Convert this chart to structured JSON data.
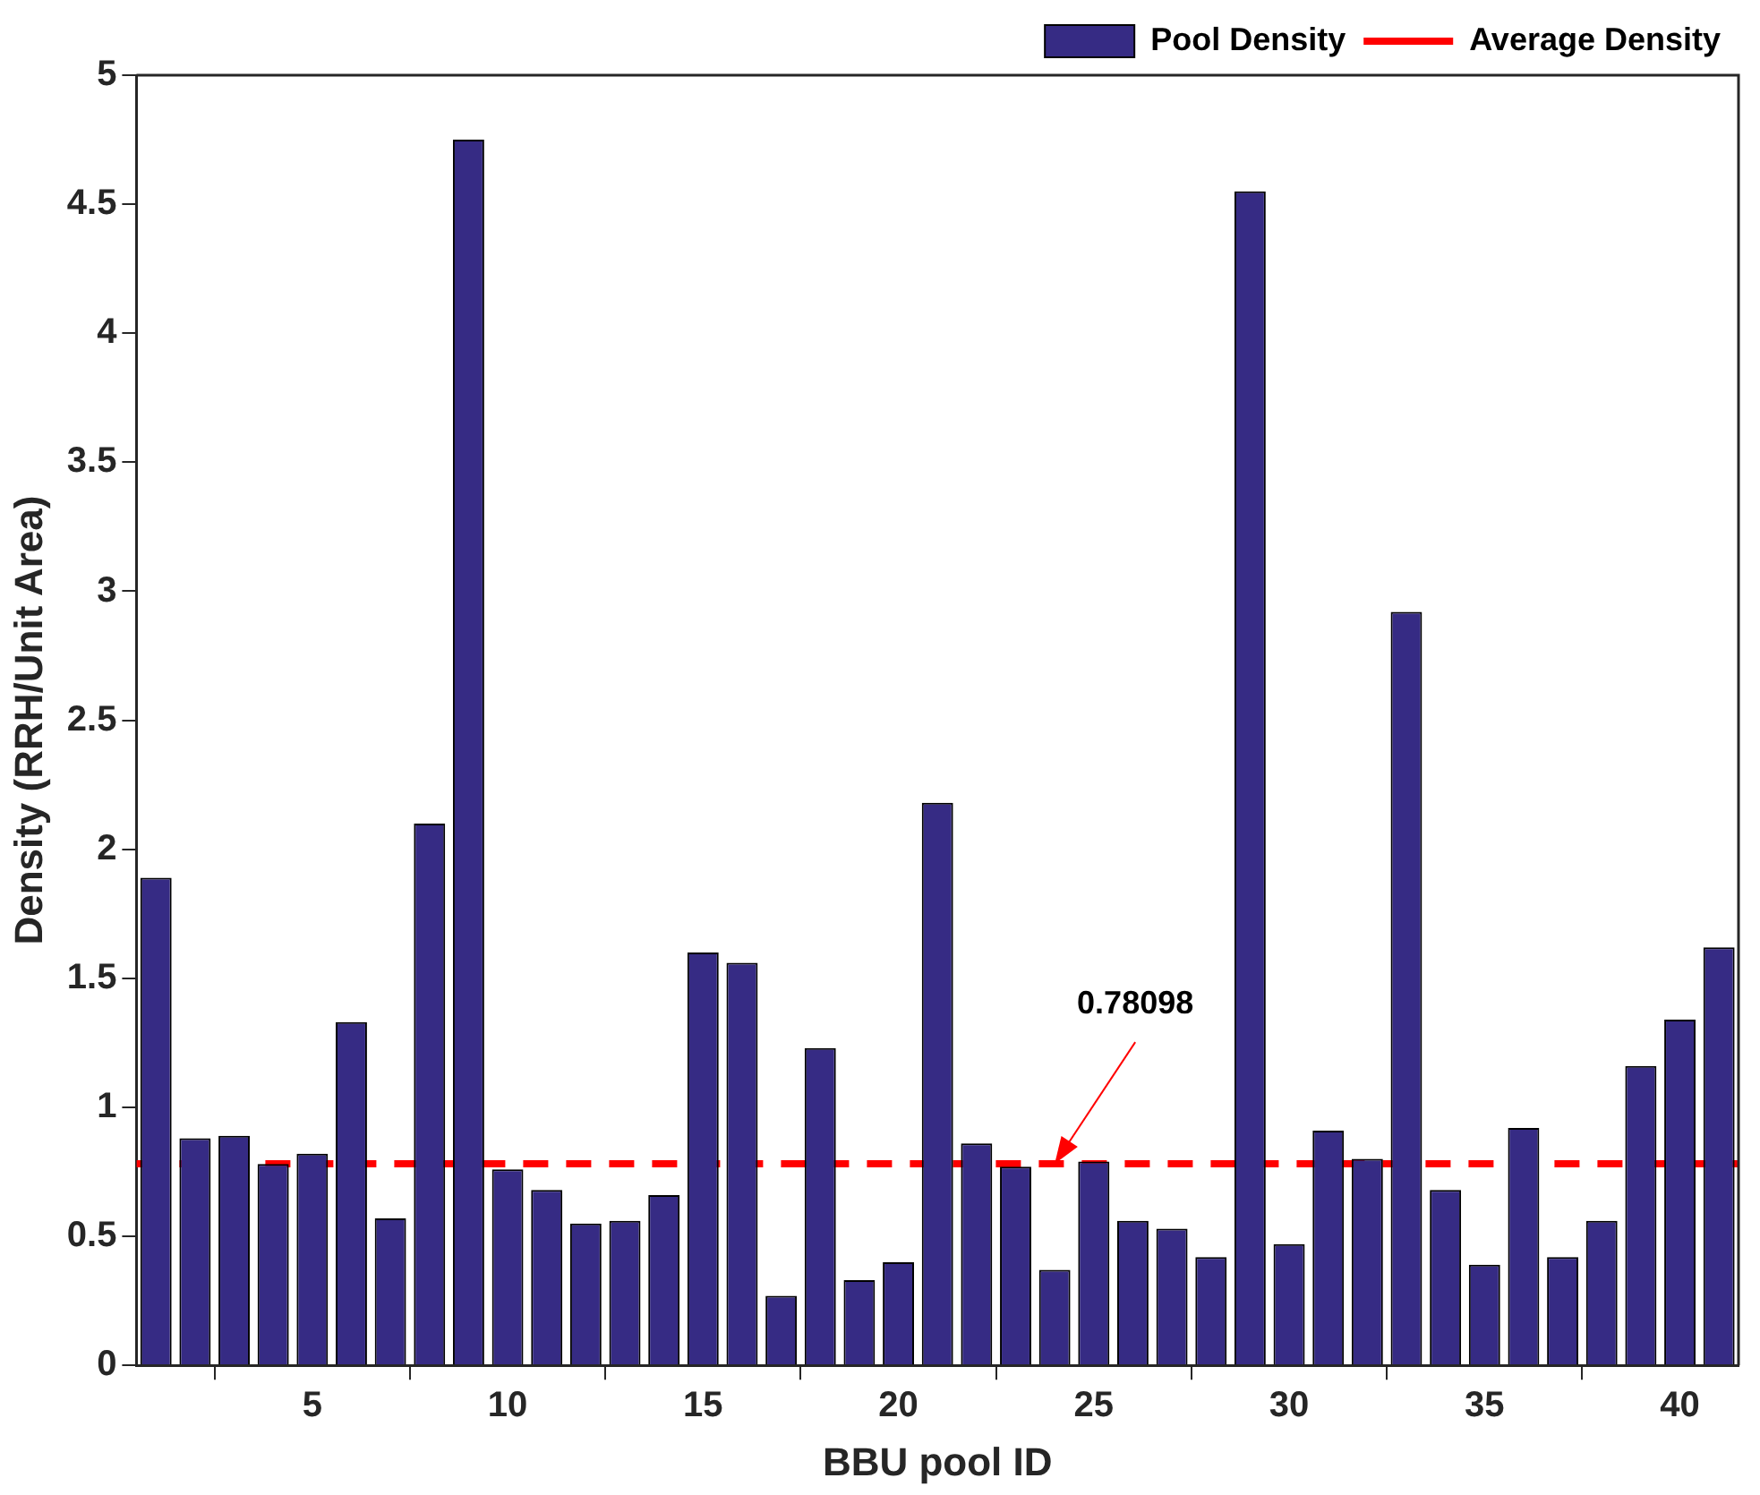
{
  "chart_data": {
    "type": "bar",
    "xlabel": "BBU pool ID",
    "ylabel": "Density (RRH/Unit Area)",
    "x": [
      1,
      2,
      3,
      4,
      5,
      6,
      7,
      8,
      9,
      10,
      11,
      12,
      13,
      14,
      15,
      16,
      17,
      18,
      19,
      20,
      21,
      22,
      23,
      24,
      25,
      26,
      27,
      28,
      29,
      30,
      31,
      32,
      33,
      34,
      35,
      36,
      37,
      38,
      39,
      40,
      41
    ],
    "series": [
      {
        "name": "Pool Density",
        "color": "#362b84",
        "values": [
          1.89,
          0.88,
          0.89,
          0.78,
          0.82,
          1.33,
          0.57,
          2.1,
          4.75,
          0.76,
          0.68,
          0.55,
          0.56,
          0.66,
          1.6,
          1.56,
          0.27,
          1.23,
          0.33,
          0.4,
          2.18,
          0.86,
          0.77,
          0.37,
          0.79,
          0.56,
          0.53,
          0.42,
          4.55,
          0.47,
          0.91,
          0.8,
          2.92,
          0.68,
          0.39,
          0.92,
          0.42,
          0.56,
          1.16,
          1.34,
          1.62
        ]
      }
    ],
    "xlim": [
      0.5,
      41.5
    ],
    "xticks": [
      5,
      10,
      15,
      20,
      25,
      30,
      35,
      40
    ],
    "ylim": [
      0,
      5
    ],
    "yticks": [
      0,
      0.5,
      1,
      1.5,
      2,
      2.5,
      3,
      3.5,
      4,
      4.5,
      5
    ],
    "ref_lines": [
      {
        "axis": "y",
        "value": 0.78098,
        "label": "Average Density",
        "color": "#ff0000",
        "line_style": "dashed"
      }
    ],
    "annotations": [
      {
        "text": "0.78098",
        "x": 24,
        "y": 0.78098
      }
    ],
    "legend": "top right",
    "grid": false
  }
}
